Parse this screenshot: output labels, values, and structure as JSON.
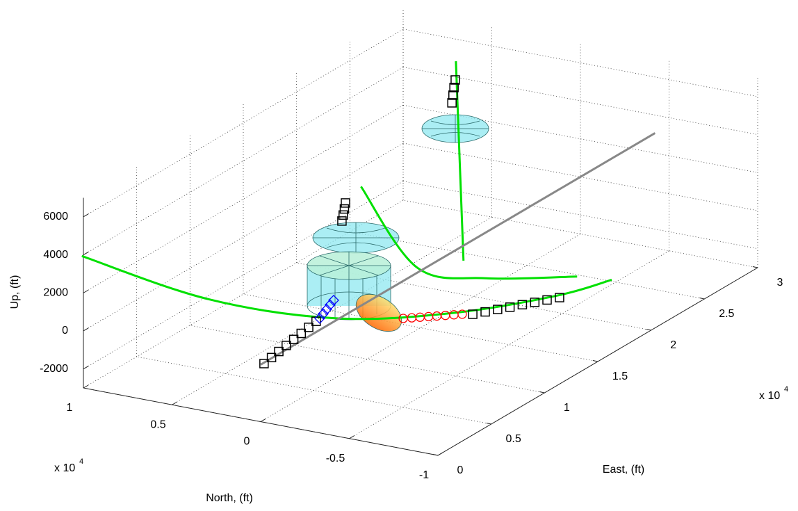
{
  "chart_data": {
    "type": "line3d",
    "xlabel": "East, (ft)",
    "ylabel": "North, (ft)",
    "zlabel": "Up, (ft)",
    "xlim": [
      0,
      30000
    ],
    "ylim": [
      -10000,
      10000
    ],
    "zlim": [
      -3000,
      7000
    ],
    "xticks": [
      {
        "value": 0,
        "label": "0"
      },
      {
        "value": 5000,
        "label": "0.5"
      },
      {
        "value": 10000,
        "label": "1"
      },
      {
        "value": 15000,
        "label": "1.5"
      },
      {
        "value": 20000,
        "label": "2"
      },
      {
        "value": 25000,
        "label": "2.5"
      },
      {
        "value": 30000,
        "label": "3"
      }
    ],
    "yticks": [
      {
        "value": -10000,
        "label": "-1"
      },
      {
        "value": -5000,
        "label": "-0.5"
      },
      {
        "value": 0,
        "label": "0"
      },
      {
        "value": 5000,
        "label": "0.5"
      },
      {
        "value": 10000,
        "label": "1"
      }
    ],
    "zticks": [
      -2000,
      0,
      2000,
      4000,
      6000
    ],
    "x_multiplier": {
      "text": "x 10",
      "exponent": "4"
    },
    "y_multiplier": {
      "text": "x 10",
      "exponent": "4"
    },
    "grid": true,
    "series": [
      {
        "color": "#00e000",
        "marker": "none",
        "x": [
          9000,
          6700,
          7300,
          10600,
          15100,
          18300
        ],
        "y": [
          15500,
          7000,
          200,
          -4400,
          -7600,
          -8800
        ],
        "z": [
          0,
          0,
          0,
          0,
          0,
          0
        ]
      },
      {
        "color": "#00e000",
        "marker": "none",
        "x": [
          23800,
          15300,
          15600,
          17900
        ],
        "y": [
          8650,
          370,
          -3340,
          -7090
        ],
        "z": [
          0,
          0,
          0,
          0
        ]
      },
      {
        "color": "#00e000",
        "marker": "none",
        "x": [
          41100,
          17200
        ],
        "y": [
          13700,
          -1100
        ],
        "z": [
          0,
          0
        ]
      },
      {
        "color": "#888888",
        "marker": "none",
        "x": [
          0,
          37000
        ],
        "y": [
          0,
          0
        ],
        "z": [
          0,
          0
        ]
      },
      {
        "color": "#000000",
        "marker": "square",
        "x": [
          200,
          1100,
          2000,
          2900,
          3800,
          4700,
          5600,
          6500
        ],
        "y": [
          -70,
          50,
          180,
          300,
          420,
          540,
          660,
          780
        ],
        "z": [
          0,
          0,
          0,
          0,
          0,
          0,
          0,
          0
        ]
      },
      {
        "color": "#000000",
        "marker": "square",
        "x": [
          10950,
          11520,
          12100,
          12660,
          13240,
          13810,
          14380,
          14950
        ],
        "y": [
          -5380,
          -5740,
          -6090,
          -6450,
          -6800,
          -7160,
          -7510,
          -7870
        ],
        "z": [
          0,
          0,
          0,
          0,
          0,
          0,
          0,
          0
        ]
      },
      {
        "color": "#000000",
        "marker": "square",
        "x": [
          21460,
          20710,
          19950,
          19200
        ],
        "y": [
          8120,
          7730,
          7340,
          6960
        ],
        "z": [
          0,
          0,
          0,
          0
        ]
      },
      {
        "color": "#000000",
        "marker": "square",
        "x": [
          38830,
          37880,
          36940,
          35990
        ],
        "y": [
          12370,
          11870,
          11360,
          10850
        ],
        "z": [
          0,
          0,
          0,
          0
        ]
      },
      {
        "color": "#ff0000",
        "marker": "circle",
        "x": [
          8850,
          9120,
          9380,
          9650,
          9910,
          10180,
          10450,
          10710
        ],
        "y": [
          -2720,
          -3040,
          -3350,
          -3670,
          -3980,
          -4300,
          -4620,
          -4930
        ],
        "z": [
          0,
          0,
          0,
          0,
          0,
          0,
          0,
          0
        ]
      },
      {
        "color": "#0000ff",
        "marker": "diamond",
        "x": [
          6940,
          7560,
          8190,
          8810,
          9440
        ],
        "y": [
          840,
          1020,
          1200,
          1380,
          1560
        ],
        "z": [
          0,
          0,
          0,
          0,
          0
        ]
      }
    ]
  }
}
